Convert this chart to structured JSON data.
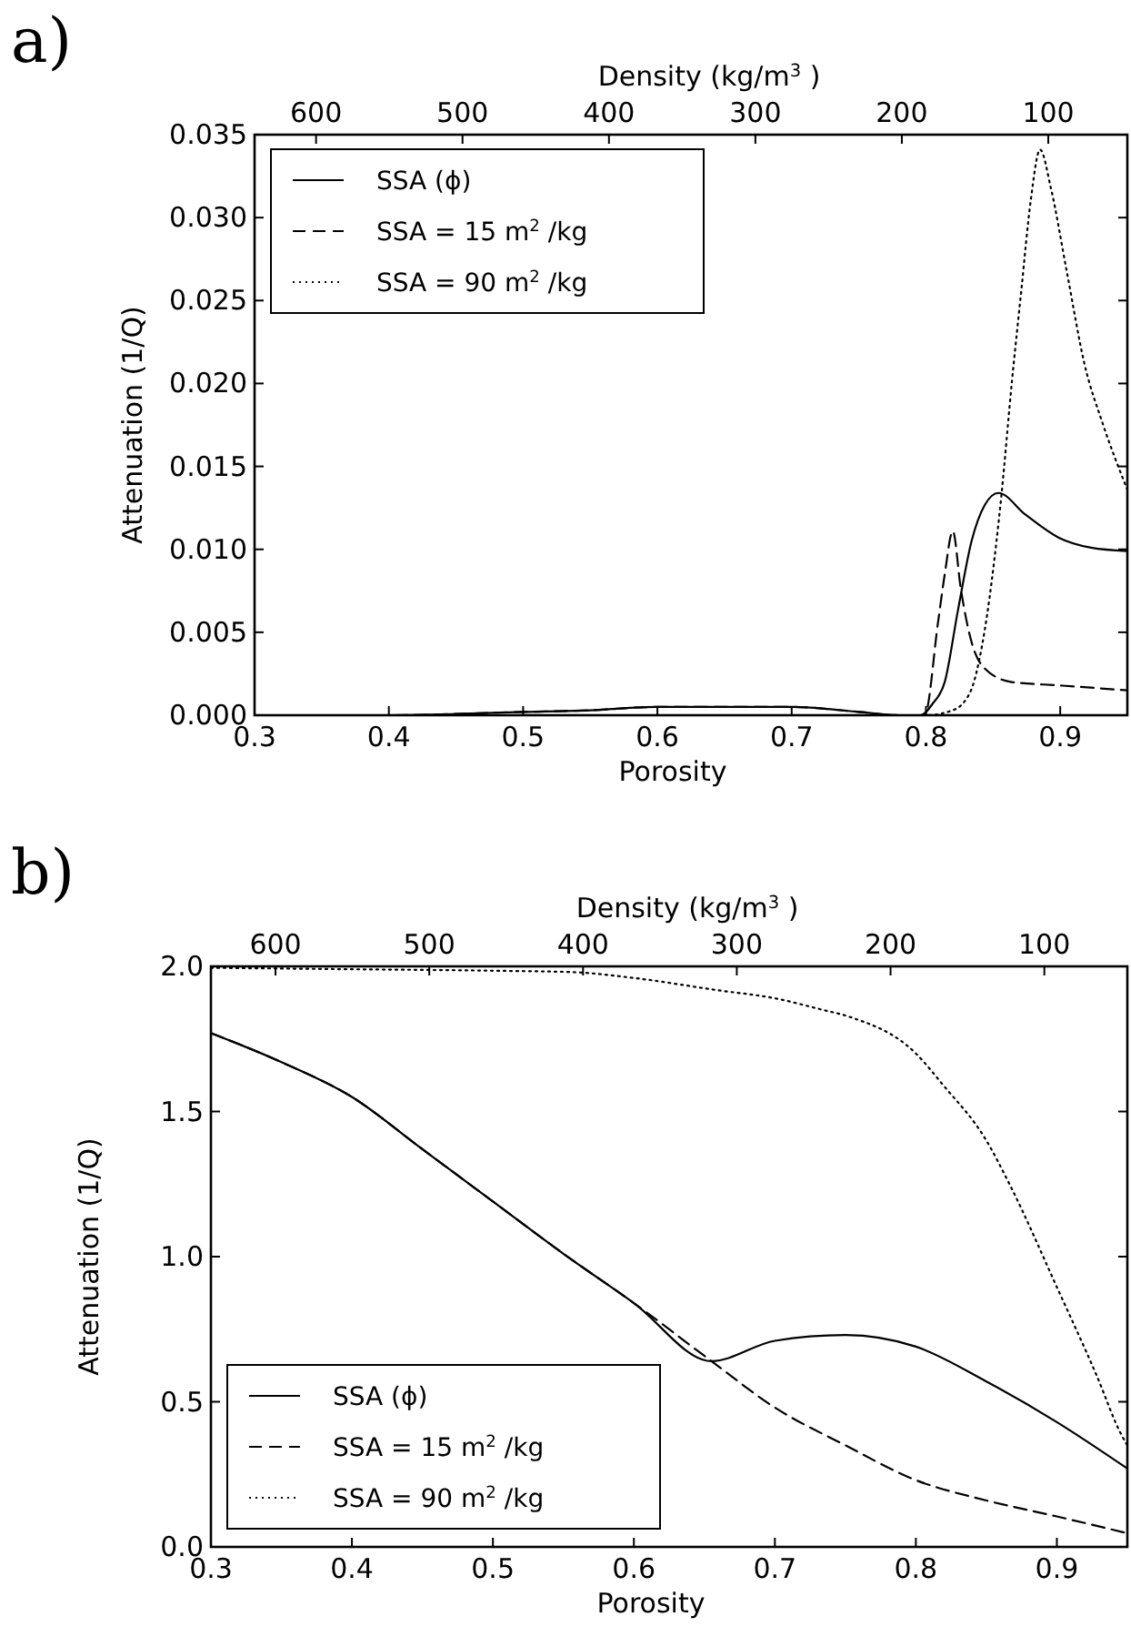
{
  "chart_data": [
    {
      "type": "line",
      "annotations": [
        "a)"
      ],
      "xlabel": "Porosity",
      "x2label": "Density (kg/m$^{3}$ )",
      "ylabel": "Attenuation (1/Q)",
      "xlim": [
        0.3,
        0.95
      ],
      "xticks": [
        0.3,
        0.4,
        0.5,
        0.6,
        0.7,
        0.8,
        0.9
      ],
      "x2lim": [
        642,
        46
      ],
      "x2ticks": [
        600,
        500,
        400,
        300,
        200,
        100
      ],
      "ylim": [
        0,
        0.035
      ],
      "yticks": [
        {
          "value": 0,
          "label": "0.000"
        },
        {
          "value": 0.005,
          "label": "0.005"
        },
        {
          "value": 0.01,
          "label": "0.010"
        },
        {
          "value": 0.015,
          "label": "0.015"
        },
        {
          "value": 0.02,
          "label": "0.020"
        },
        {
          "value": 0.025,
          "label": "0.025"
        },
        {
          "value": 0.03,
          "label": "0.030"
        },
        {
          "value": 0.035,
          "label": "0.035"
        }
      ],
      "grid": false,
      "legend": "top left",
      "series": [
        {
          "name": "SSA (ϕ)",
          "color": "#000000",
          "line_style": "solid",
          "x": [
            0.3,
            0.4,
            0.5,
            0.55,
            0.6,
            0.65,
            0.7,
            0.75,
            0.78,
            0.796,
            0.805,
            0.814,
            0.824,
            0.834,
            0.844,
            0.854,
            0.874,
            0.899,
            0.923,
            0.95
          ],
          "values": [
            0,
            0,
            0.0002,
            0.0003,
            0.0005,
            0.0005,
            0.0005,
            0.0002,
            0,
            0,
            0.0007,
            0.002,
            0.0064,
            0.0105,
            0.0127,
            0.0134,
            0.0121,
            0.0107,
            0.0101,
            0.0099
          ]
        },
        {
          "name": "SSA = 15 m$^{2}$ /kg",
          "color": "#000000",
          "line_style": "dashed",
          "x": [
            0.3,
            0.4,
            0.5,
            0.55,
            0.6,
            0.65,
            0.7,
            0.75,
            0.78,
            0.799,
            0.809,
            0.814,
            0.82,
            0.826,
            0.834,
            0.844,
            0.864,
            0.899,
            0.95
          ],
          "values": [
            0,
            0,
            0.0002,
            0.0003,
            0.0005,
            0.0005,
            0.0005,
            0.0002,
            0,
            0,
            0.0056,
            0.0085,
            0.0111,
            0.0076,
            0.0044,
            0.0028,
            0.002,
            0.0018,
            0.0015
          ]
        },
        {
          "name": "SSA = 90 m$^{2}$ /kg",
          "color": "#000000",
          "line_style": "dotted",
          "x": [
            0.3,
            0.5,
            0.7,
            0.8,
            0.82,
            0.833,
            0.842,
            0.856,
            0.864,
            0.871,
            0.878,
            0.885,
            0.893,
            0.905,
            0.918,
            0.932,
            0.95
          ],
          "values": [
            0,
            0,
            0,
            0,
            0.0003,
            0.0014,
            0.0043,
            0.0131,
            0.0201,
            0.0256,
            0.031,
            0.0341,
            0.0318,
            0.0267,
            0.0212,
            0.0175,
            0.0136
          ]
        }
      ]
    },
    {
      "type": "line",
      "annotations": [
        "b)"
      ],
      "xlabel": "Porosity",
      "x2label": "Density (kg/m$^{3}$ )",
      "ylabel": "Attenuation (1/Q)",
      "xlim": [
        0.3,
        0.95
      ],
      "xticks": [
        0.3,
        0.4,
        0.5,
        0.6,
        0.7,
        0.8,
        0.9
      ],
      "x2lim": [
        642,
        46
      ],
      "x2ticks": [
        600,
        500,
        400,
        300,
        200,
        100
      ],
      "ylim": [
        0,
        2
      ],
      "yticks": [
        {
          "value": 0,
          "label": "0.0"
        },
        0.5,
        {
          "value": 1,
          "label": "1.0"
        },
        1.5,
        {
          "value": 2,
          "label": "2.0"
        }
      ],
      "grid": false,
      "legend": "bottom left",
      "series": [
        {
          "name": "SSA (ϕ)",
          "color": "#000000",
          "line_style": "solid",
          "x": [
            0.3,
            0.35,
            0.4,
            0.45,
            0.5,
            0.55,
            0.6,
            0.655,
            0.7,
            0.75,
            0.8,
            0.85,
            0.9,
            0.95
          ],
          "values": [
            1.77,
            1.67,
            1.55,
            1.37,
            1.19,
            1.01,
            0.84,
            0.64,
            0.71,
            0.73,
            0.69,
            0.57,
            0.43,
            0.27
          ]
        },
        {
          "name": "SSA = 15 m$^{2}$ /kg",
          "color": "#000000",
          "line_style": "dashed",
          "x": [
            0.3,
            0.35,
            0.4,
            0.45,
            0.5,
            0.55,
            0.6,
            0.655,
            0.7,
            0.75,
            0.8,
            0.85,
            0.9,
            0.95
          ],
          "values": [
            1.77,
            1.67,
            1.55,
            1.37,
            1.19,
            1.01,
            0.84,
            0.64,
            0.48,
            0.35,
            0.23,
            0.16,
            0.105,
            0.047
          ]
        },
        {
          "name": "SSA = 90 m$^{2}$ /kg",
          "color": "#000000",
          "line_style": "dotted",
          "x": [
            0.3,
            0.4,
            0.5,
            0.557,
            0.6,
            0.659,
            0.7,
            0.734,
            0.753,
            0.8,
            0.819,
            0.85,
            0.867,
            0.9,
            0.928,
            0.946,
            0.95
          ],
          "values": [
            1.995,
            1.99,
            1.985,
            1.98,
            1.96,
            1.918,
            1.89,
            1.85,
            1.826,
            1.7,
            1.593,
            1.4,
            1.244,
            0.895,
            0.593,
            0.384,
            0.35
          ]
        }
      ]
    }
  ]
}
